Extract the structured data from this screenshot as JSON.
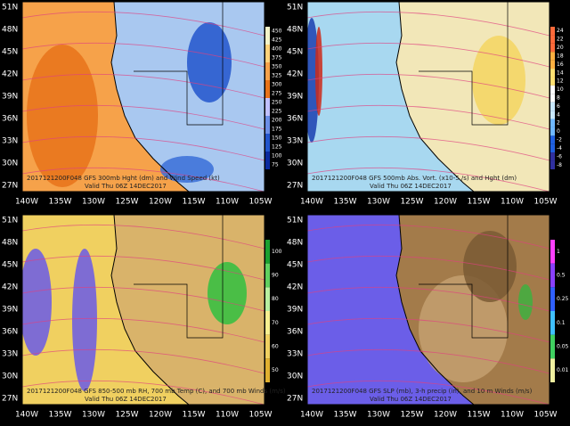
{
  "lat_labels": [
    "51N",
    "48N",
    "45N",
    "42N",
    "39N",
    "36N",
    "33N",
    "30N",
    "27N"
  ],
  "lon_labels": [
    "140W",
    "135W",
    "130W",
    "125W",
    "120W",
    "115W",
    "110W",
    "105W"
  ],
  "panels": [
    {
      "caption": "2017121200F048 GFS 300mb Hght (dm) and Wind Speed (kt)",
      "valid": "Valid Thu 06Z 14DEC2017",
      "colorbar": [
        "450",
        "425",
        "400",
        "375",
        "350",
        "325",
        "300",
        "275",
        "250",
        "225",
        "200",
        "175",
        "150",
        "125",
        "100",
        "75"
      ]
    },
    {
      "caption": "2017121200F048 GFS 500mb Abs. Vort. (x10-5 /s) and Hght (dm)",
      "valid": "Valid Thu 06Z 14DEC2017",
      "colorbar": [
        "24",
        "22",
        "20",
        "18",
        "16",
        "14",
        "12",
        "10",
        "8",
        "6",
        "4",
        "2",
        "0",
        "-2",
        "-4",
        "-6",
        "-8"
      ]
    },
    {
      "caption": "2017121200F048 GFS 850-500 mb RH, 700 mb Temp (C), and 700 mb Winds (m/s)",
      "valid": "Valid Thu 06Z 14DEC2017",
      "colorbar": [
        "100",
        "90",
        "80",
        "70",
        "60",
        "50"
      ]
    },
    {
      "caption": "2017121200F048 GFS SLP (mb), 3-h precip (in), and 10 m Winds (m/s)",
      "valid": "Valid Thu 06Z 14DEC2017",
      "colorbar": [
        "1",
        "0.5",
        "0.25",
        "0.1",
        "0.05",
        "0.01"
      ]
    }
  ]
}
